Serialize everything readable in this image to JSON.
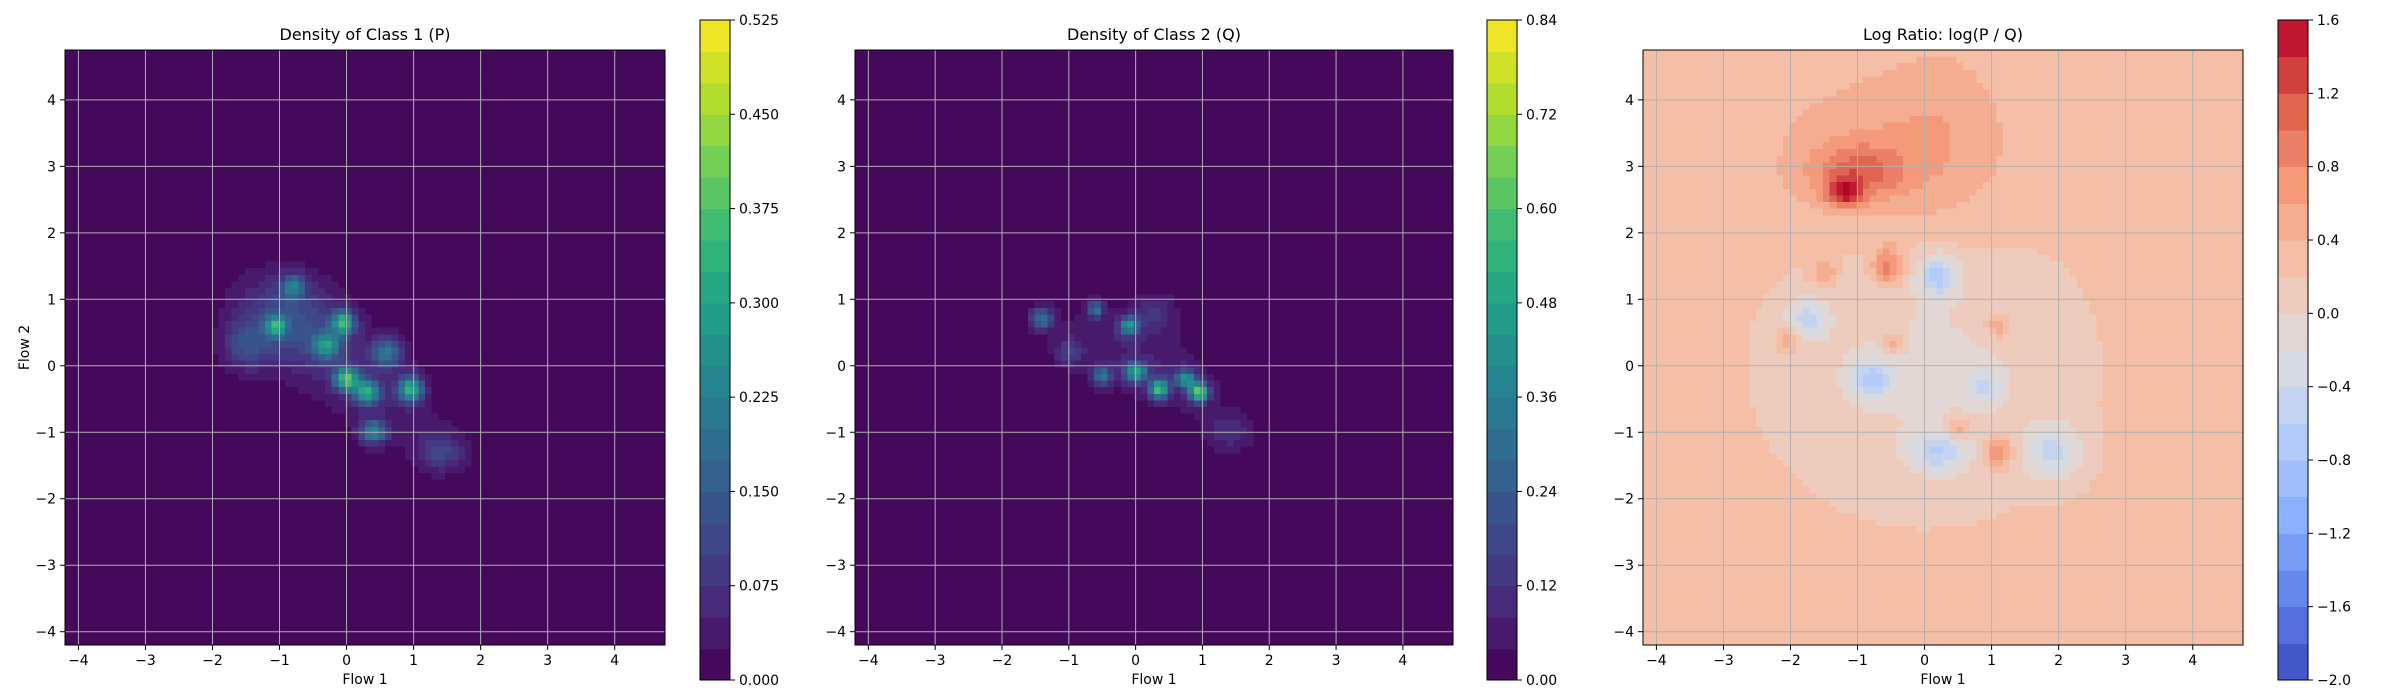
{
  "chart_data": [
    {
      "type": "heatmap",
      "title": "Density of Class 1 (P)",
      "xlabel": "Flow 1",
      "ylabel": "Flow 2",
      "xlim": [
        -4.2,
        4.75
      ],
      "ylim": [
        -4.2,
        4.75
      ],
      "xticks": [
        "−4",
        "−3",
        "−2",
        "−1",
        "0",
        "1",
        "2",
        "3",
        "4"
      ],
      "yticks": [
        "−4",
        "−3",
        "−2",
        "−1",
        "0",
        "1",
        "2",
        "3",
        "4"
      ],
      "grid": true,
      "colormap": "viridis",
      "colorbar": {
        "range": [
          0,
          0.525
        ],
        "levels": 21,
        "ticks": [
          "0.000",
          "0.075",
          "0.150",
          "0.225",
          "0.300",
          "0.375",
          "0.450",
          "0.525"
        ]
      },
      "blobs": [
        {
          "x": 0.0,
          "y": 0.0,
          "sx": 1.15,
          "sy": 0.5,
          "angle": -38,
          "peak": 0.06
        },
        {
          "x": -0.9,
          "y": 0.7,
          "sx": 0.5,
          "sy": 0.45,
          "angle": 0,
          "peak": 0.1
        },
        {
          "x": -0.05,
          "y": 0.65,
          "sx": 0.12,
          "sy": 0.12,
          "angle": 0,
          "peak": 0.3
        },
        {
          "x": 0.0,
          "y": -0.2,
          "sx": 0.12,
          "sy": 0.12,
          "angle": 0,
          "peak": 0.34
        },
        {
          "x": 0.3,
          "y": -0.4,
          "sx": 0.13,
          "sy": 0.12,
          "angle": 0,
          "peak": 0.3
        },
        {
          "x": 0.95,
          "y": -0.35,
          "sx": 0.13,
          "sy": 0.13,
          "angle": 0,
          "peak": 0.3
        },
        {
          "x": -1.05,
          "y": 0.6,
          "sx": 0.1,
          "sy": 0.1,
          "angle": 0,
          "peak": 0.25
        },
        {
          "x": 0.4,
          "y": -1.0,
          "sx": 0.14,
          "sy": 0.12,
          "angle": 0,
          "peak": 0.22
        },
        {
          "x": -0.3,
          "y": 0.3,
          "sx": 0.14,
          "sy": 0.14,
          "angle": 0,
          "peak": 0.22
        },
        {
          "x": -0.8,
          "y": 1.2,
          "sx": 0.12,
          "sy": 0.12,
          "angle": 0,
          "peak": 0.18
        },
        {
          "x": 0.6,
          "y": 0.2,
          "sx": 0.15,
          "sy": 0.15,
          "angle": 0,
          "peak": 0.18
        },
        {
          "x": -1.5,
          "y": 0.3,
          "sx": 0.25,
          "sy": 0.25,
          "angle": 0,
          "peak": 0.1
        },
        {
          "x": 1.4,
          "y": -1.3,
          "sx": 0.25,
          "sy": 0.2,
          "angle": 0,
          "peak": 0.1
        }
      ]
    },
    {
      "type": "heatmap",
      "title": "Density of Class 2 (Q)",
      "xlabel": "Flow 1",
      "ylabel": "",
      "xlim": [
        -4.2,
        4.75
      ],
      "ylim": [
        -4.2,
        4.75
      ],
      "xticks": [
        "−4",
        "−3",
        "−2",
        "−1",
        "0",
        "1",
        "2",
        "3",
        "4"
      ],
      "yticks": [
        "−4",
        "−3",
        "−2",
        "−1",
        "0",
        "1",
        "2",
        "3",
        "4"
      ],
      "grid": true,
      "colormap": "viridis",
      "colorbar": {
        "range": [
          0,
          0.84
        ],
        "levels": 21,
        "ticks": [
          "0.00",
          "0.12",
          "0.24",
          "0.36",
          "0.48",
          "0.60",
          "0.72",
          "0.84"
        ]
      },
      "blobs": [
        {
          "x": 0.1,
          "y": 0.1,
          "sx": 1.0,
          "sy": 0.45,
          "angle": -32,
          "peak": 0.08
        },
        {
          "x": -0.1,
          "y": 0.6,
          "sx": 0.1,
          "sy": 0.1,
          "angle": 0,
          "peak": 0.4
        },
        {
          "x": 0.0,
          "y": -0.1,
          "sx": 0.12,
          "sy": 0.1,
          "angle": 0,
          "peak": 0.45
        },
        {
          "x": 0.35,
          "y": -0.35,
          "sx": 0.1,
          "sy": 0.1,
          "angle": 0,
          "peak": 0.55
        },
        {
          "x": 0.95,
          "y": -0.4,
          "sx": 0.1,
          "sy": 0.1,
          "angle": 0,
          "peak": 0.6
        },
        {
          "x": 0.75,
          "y": -0.2,
          "sx": 0.1,
          "sy": 0.1,
          "angle": 0,
          "peak": 0.4
        },
        {
          "x": -1.4,
          "y": 0.7,
          "sx": 0.12,
          "sy": 0.12,
          "angle": 0,
          "peak": 0.3
        },
        {
          "x": -0.5,
          "y": -0.15,
          "sx": 0.1,
          "sy": 0.1,
          "angle": 0,
          "peak": 0.32
        },
        {
          "x": -0.6,
          "y": 0.85,
          "sx": 0.08,
          "sy": 0.08,
          "angle": 0,
          "peak": 0.28
        },
        {
          "x": -1.0,
          "y": 0.2,
          "sx": 0.15,
          "sy": 0.15,
          "angle": 0,
          "peak": 0.15
        },
        {
          "x": 1.4,
          "y": -1.0,
          "sx": 0.25,
          "sy": 0.2,
          "angle": 0,
          "peak": 0.1
        },
        {
          "x": 0.3,
          "y": 0.8,
          "sx": 0.2,
          "sy": 0.2,
          "angle": 0,
          "peak": 0.12
        }
      ]
    },
    {
      "type": "heatmap",
      "title": "Log Ratio: log(P / Q)",
      "xlabel": "Flow 1",
      "ylabel": "",
      "xlim": [
        -4.2,
        4.75
      ],
      "ylim": [
        -4.2,
        4.75
      ],
      "xticks": [
        "−4",
        "−3",
        "−2",
        "−1",
        "0",
        "1",
        "2",
        "3",
        "4"
      ],
      "yticks": [
        "−4",
        "−3",
        "−2",
        "−1",
        "0",
        "1",
        "2",
        "3",
        "4"
      ],
      "grid": true,
      "colormap": "coolwarm",
      "colorbar": {
        "range": [
          -2.0,
          1.6
        ],
        "levels": 18,
        "ticks": [
          "−2.0",
          "−1.6",
          "−1.2",
          "−0.8",
          "−0.4",
          "0.0",
          "0.4",
          "0.8",
          "1.2",
          "1.6"
        ]
      },
      "base_value": 0.25,
      "blobs": [
        {
          "x": -1.0,
          "y": 2.9,
          "sx": 0.5,
          "sy": 0.3,
          "angle": 0,
          "peak": 0.65
        },
        {
          "x": -1.2,
          "y": 2.6,
          "sx": 0.18,
          "sy": 0.15,
          "angle": 0,
          "peak": 0.9
        },
        {
          "x": -0.6,
          "y": 3.3,
          "sx": 1.2,
          "sy": 0.8,
          "angle": 0,
          "peak": 0.3
        },
        {
          "x": 0.0,
          "y": 0.0,
          "sx": 1.4,
          "sy": 1.3,
          "angle": 0,
          "peak": -0.3
        },
        {
          "x": 0.2,
          "y": 1.35,
          "sx": 0.2,
          "sy": 0.22,
          "angle": 0,
          "peak": -0.85
        },
        {
          "x": -0.8,
          "y": -0.2,
          "sx": 0.22,
          "sy": 0.2,
          "angle": 0,
          "peak": -0.75
        },
        {
          "x": -1.75,
          "y": 0.7,
          "sx": 0.2,
          "sy": 0.2,
          "angle": 0,
          "peak": -0.7
        },
        {
          "x": 0.2,
          "y": -1.3,
          "sx": 0.3,
          "sy": 0.22,
          "angle": 0,
          "peak": -0.7
        },
        {
          "x": 1.9,
          "y": -1.3,
          "sx": 0.3,
          "sy": 0.3,
          "angle": 0,
          "peak": -0.65
        },
        {
          "x": 0.9,
          "y": -0.3,
          "sx": 0.2,
          "sy": 0.2,
          "angle": 0,
          "peak": -0.5
        },
        {
          "x": -0.55,
          "y": 1.5,
          "sx": 0.15,
          "sy": 0.2,
          "angle": 0,
          "peak": 0.75
        },
        {
          "x": 1.1,
          "y": -1.3,
          "sx": 0.15,
          "sy": 0.15,
          "angle": 0,
          "peak": 0.7
        },
        {
          "x": 0.5,
          "y": -0.95,
          "sx": 0.12,
          "sy": 0.12,
          "angle": 0,
          "peak": 0.55
        },
        {
          "x": 1.1,
          "y": 0.6,
          "sx": 0.12,
          "sy": 0.12,
          "angle": 0,
          "peak": 0.5
        },
        {
          "x": -1.5,
          "y": 1.4,
          "sx": 0.12,
          "sy": 0.12,
          "angle": 0,
          "peak": 0.45
        },
        {
          "x": -2.0,
          "y": 0.4,
          "sx": 0.12,
          "sy": 0.12,
          "angle": 0,
          "peak": 0.4
        },
        {
          "x": -0.45,
          "y": 0.35,
          "sx": 0.12,
          "sy": 0.12,
          "angle": 0,
          "peak": 0.45
        },
        {
          "x": 0.3,
          "y": 3.5,
          "sx": 0.6,
          "sy": 1.2,
          "angle": 0,
          "peak": 0.15
        }
      ]
    }
  ]
}
